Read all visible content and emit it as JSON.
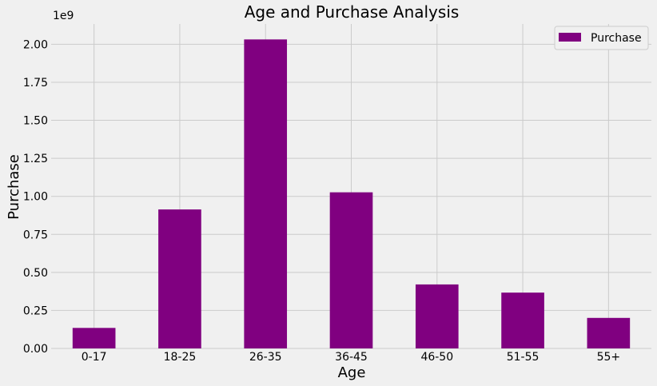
{
  "chart_data": {
    "type": "bar",
    "title": "Age and Purchase Analysis",
    "xlabel": "Age",
    "ylabel": "Purchase",
    "y_scale_label": "1e9",
    "categories": [
      "0-17",
      "18-25",
      "26-35",
      "36-45",
      "46-50",
      "51-55",
      "55+"
    ],
    "series": [
      {
        "name": "Purchase",
        "color": "#800080",
        "values": [
          134913183,
          913848675,
          2031770578,
          1026569884,
          420843403,
          367099644,
          200767375
        ]
      }
    ],
    "ylim": [
      0,
      2133359107
    ],
    "yticks": [
      0,
      250000000,
      500000000,
      750000000,
      1000000000,
      1250000000,
      1500000000,
      1750000000,
      2000000000
    ],
    "ytick_labels": [
      "0.00",
      "0.25",
      "0.50",
      "0.75",
      "1.00",
      "1.25",
      "1.50",
      "1.75",
      "2.00"
    ],
    "grid": true,
    "legend_position": "top-right"
  }
}
